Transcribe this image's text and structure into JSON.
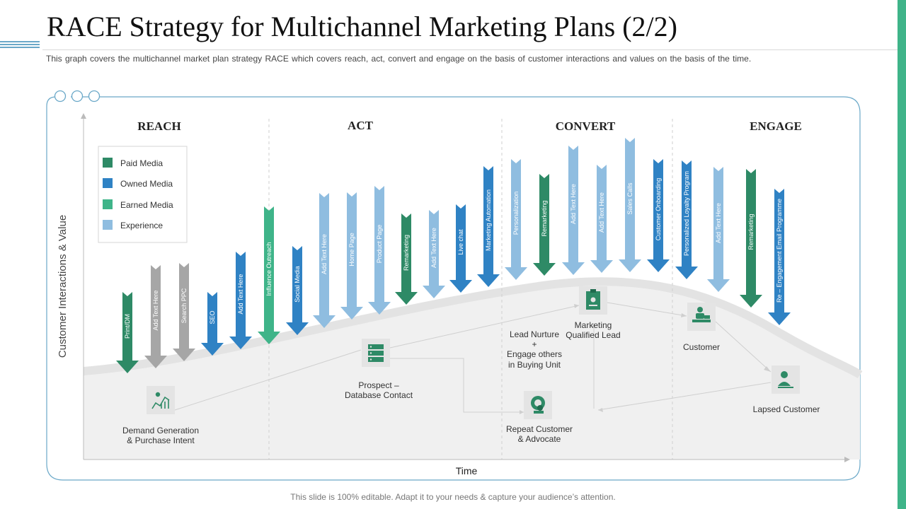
{
  "title": "RACE Strategy for Multichannel Marketing Plans (2/2)",
  "subtitle": "This graph covers the multichannel market plan strategy RACE which covers reach, act, convert and engage on the basis of customer interactions and values  on the basis of the time.",
  "footer": "This slide is 100% editable. Adapt it to your needs & capture your audience’s attention.",
  "axes": {
    "y_label": "Customer Interactions & Value",
    "x_label": "Time"
  },
  "stages": [
    "REACH",
    "ACT",
    "CONVERT",
    "ENGAGE"
  ],
  "legend": [
    {
      "label": "Paid Media",
      "color": "#2e8a66"
    },
    {
      "label": "Owned Media",
      "color": "#2f82c4"
    },
    {
      "label": "Earned Media",
      "color": "#3fb489"
    },
    {
      "label": "Experience",
      "color": "#8fbde0"
    }
  ],
  "arrows": [
    {
      "label": "Print/DM",
      "color": "#2e8a66"
    },
    {
      "label": "Add Text Here",
      "color": "#a6a6a6"
    },
    {
      "label": "Search PPC",
      "color": "#a6a6a6"
    },
    {
      "label": "SEO",
      "color": "#2f82c4"
    },
    {
      "label": "Add Text Here",
      "color": "#2f82c4"
    },
    {
      "label": "Influence Outreach",
      "color": "#3fb489"
    },
    {
      "label": "Social Media",
      "color": "#2f82c4"
    },
    {
      "label": "Add Text Here",
      "color": "#8fbde0"
    },
    {
      "label": "Home Page",
      "color": "#8fbde0"
    },
    {
      "label": "Product Page",
      "color": "#8fbde0"
    },
    {
      "label": "Remarketing",
      "color": "#2e8a66"
    },
    {
      "label": "Add Text Here",
      "color": "#8fbde0"
    },
    {
      "label": "Live chat",
      "color": "#2f82c4"
    },
    {
      "label": "Marketing Automation",
      "color": "#2f82c4"
    },
    {
      "label": "Personalization",
      "color": "#8fbde0"
    },
    {
      "label": "Remarketing",
      "color": "#2e8a66"
    },
    {
      "label": "Add Text Here",
      "color": "#8fbde0"
    },
    {
      "label": "Add Text Here",
      "color": "#8fbde0"
    },
    {
      "label": "Sales Calls",
      "color": "#8fbde0"
    },
    {
      "label": "Customer Onboarding",
      "color": "#2f82c4"
    },
    {
      "label": "Personalized Loyalty Program",
      "color": "#2f82c4"
    },
    {
      "label": "Add Text Here",
      "color": "#8fbde0"
    },
    {
      "label": "Remarketing",
      "color": "#2e8a66"
    },
    {
      "label": "Re – Engagement Email Programme",
      "color": "#2f82c4"
    }
  ],
  "nodes": [
    {
      "id": "demand",
      "icon": "growth-chart-icon",
      "lines": [
        "Demand Generation",
        "& Purchase Intent"
      ]
    },
    {
      "id": "prospect",
      "icon": "database-server-icon",
      "lines": [
        "Prospect –",
        "Database Contact"
      ]
    },
    {
      "id": "nurture",
      "icon": "",
      "lines": [
        "Lead Nurture",
        "+",
        "Engage others",
        "in Buying Unit"
      ]
    },
    {
      "id": "mql",
      "icon": "clipboard-icon",
      "lines": [
        "Marketing",
        "Qualified Lead"
      ]
    },
    {
      "id": "repeat",
      "icon": "advocate-badge-icon",
      "lines": [
        "Repeat Customer",
        "& Advocate"
      ]
    },
    {
      "id": "customer",
      "icon": "customer-desk-icon",
      "lines": [
        "Customer"
      ]
    },
    {
      "id": "lapsed",
      "icon": "lapsed-user-icon",
      "lines": [
        "Lapsed Customer"
      ]
    }
  ]
}
